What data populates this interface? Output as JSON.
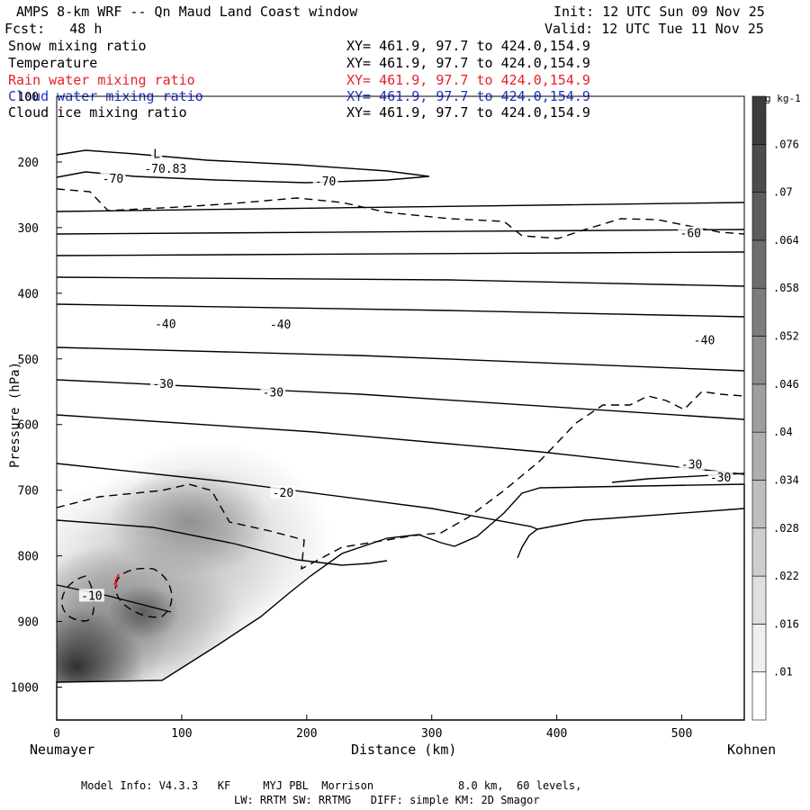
{
  "header": {
    "title": "AMPS 8-km WRF -- Qn Maud Land Coast window",
    "fcst": "Fcst:   48 h",
    "init": "Init: 12 UTC Sun 09 Nov 25",
    "valid": "Valid: 12 UTC Tue 11 Nov 25"
  },
  "fields": [
    {
      "name": "Snow mixing ratio",
      "xy": "XY= 461.9, 97.7 to 424.0,154.9",
      "color": "#000000"
    },
    {
      "name": "Temperature",
      "xy": "XY= 461.9, 97.7 to 424.0,154.9",
      "color": "#000000"
    },
    {
      "name": "Rain water mixing ratio",
      "xy": "XY= 461.9, 97.7 to 424.0,154.9",
      "color": "#e8202a"
    },
    {
      "name": "Cloud water mixing ratio",
      "xy": "XY= 461.9, 97.7 to 424.0,154.9",
      "color": "#2030c8"
    },
    {
      "name": "Cloud ice mixing ratio",
      "xy": "XY= 461.9, 97.7 to 424.0,154.9",
      "color": "#000000"
    }
  ],
  "chart_data": {
    "type": "contour",
    "title": "AMPS 8-km WRF -- Qn Maud Land Coast window",
    "xlabel": "Distance (km)",
    "ylabel": "Pressure (hPa)",
    "xlim": [
      0,
      550
    ],
    "ylim": [
      1050,
      100
    ],
    "x_ticks": [
      "0",
      "100",
      "200",
      "300",
      "400",
      "500"
    ],
    "x_tick_values": [
      0,
      100,
      200,
      300,
      400,
      500
    ],
    "y_ticks": [
      "100",
      "200",
      "300",
      "400",
      "500",
      "600",
      "700",
      "800",
      "900",
      "1000"
    ],
    "y_tick_values": [
      100,
      200,
      300,
      400,
      500,
      600,
      700,
      800,
      900,
      1000
    ],
    "left_endpoint": "Neumayer",
    "right_endpoint": "Kohnen",
    "temperature_labels": [
      {
        "text": "-70",
        "x": 45,
        "p": 225
      },
      {
        "text": "-70",
        "x": 215,
        "p": 229
      },
      {
        "text": "-70.83",
        "x": 87,
        "p": 210
      },
      {
        "text": "L",
        "x": 80,
        "p": 187
      },
      {
        "text": "-60",
        "x": 507,
        "p": 308
      },
      {
        "text": "-40",
        "x": 87,
        "p": 446
      },
      {
        "text": "-40",
        "x": 179,
        "p": 447
      },
      {
        "text": "-40",
        "x": 518,
        "p": 471
      },
      {
        "text": "-30",
        "x": 85,
        "p": 537
      },
      {
        "text": "-30",
        "x": 173,
        "p": 550
      },
      {
        "text": "-30",
        "x": 508,
        "p": 660
      },
      {
        "text": "-30",
        "x": 531,
        "p": 680
      },
      {
        "text": "-20",
        "x": 181,
        "p": 703
      },
      {
        "text": "-10",
        "x": 28,
        "p": 860
      }
    ],
    "colorbar": {
      "unit": "g kg-1",
      "ticks": [
        ".076",
        ".07",
        ".064",
        ".058",
        ".052",
        ".046",
        ".04",
        ".034",
        ".028",
        ".022",
        ".016",
        ".01"
      ],
      "tick_values": [
        0.076,
        0.07,
        0.064,
        0.058,
        0.052,
        0.046,
        0.04,
        0.034,
        0.028,
        0.022,
        0.016,
        0.01
      ],
      "range": [
        0.004,
        0.082
      ]
    }
  },
  "footer": {
    "line1": "Model Info: V4.3.3   KF     MYJ PBL  Morrison             8.0 km,  60 levels,",
    "line2": "LW: RRTM SW: RRTMG   DIFF: simple KM: 2D Smagor"
  }
}
